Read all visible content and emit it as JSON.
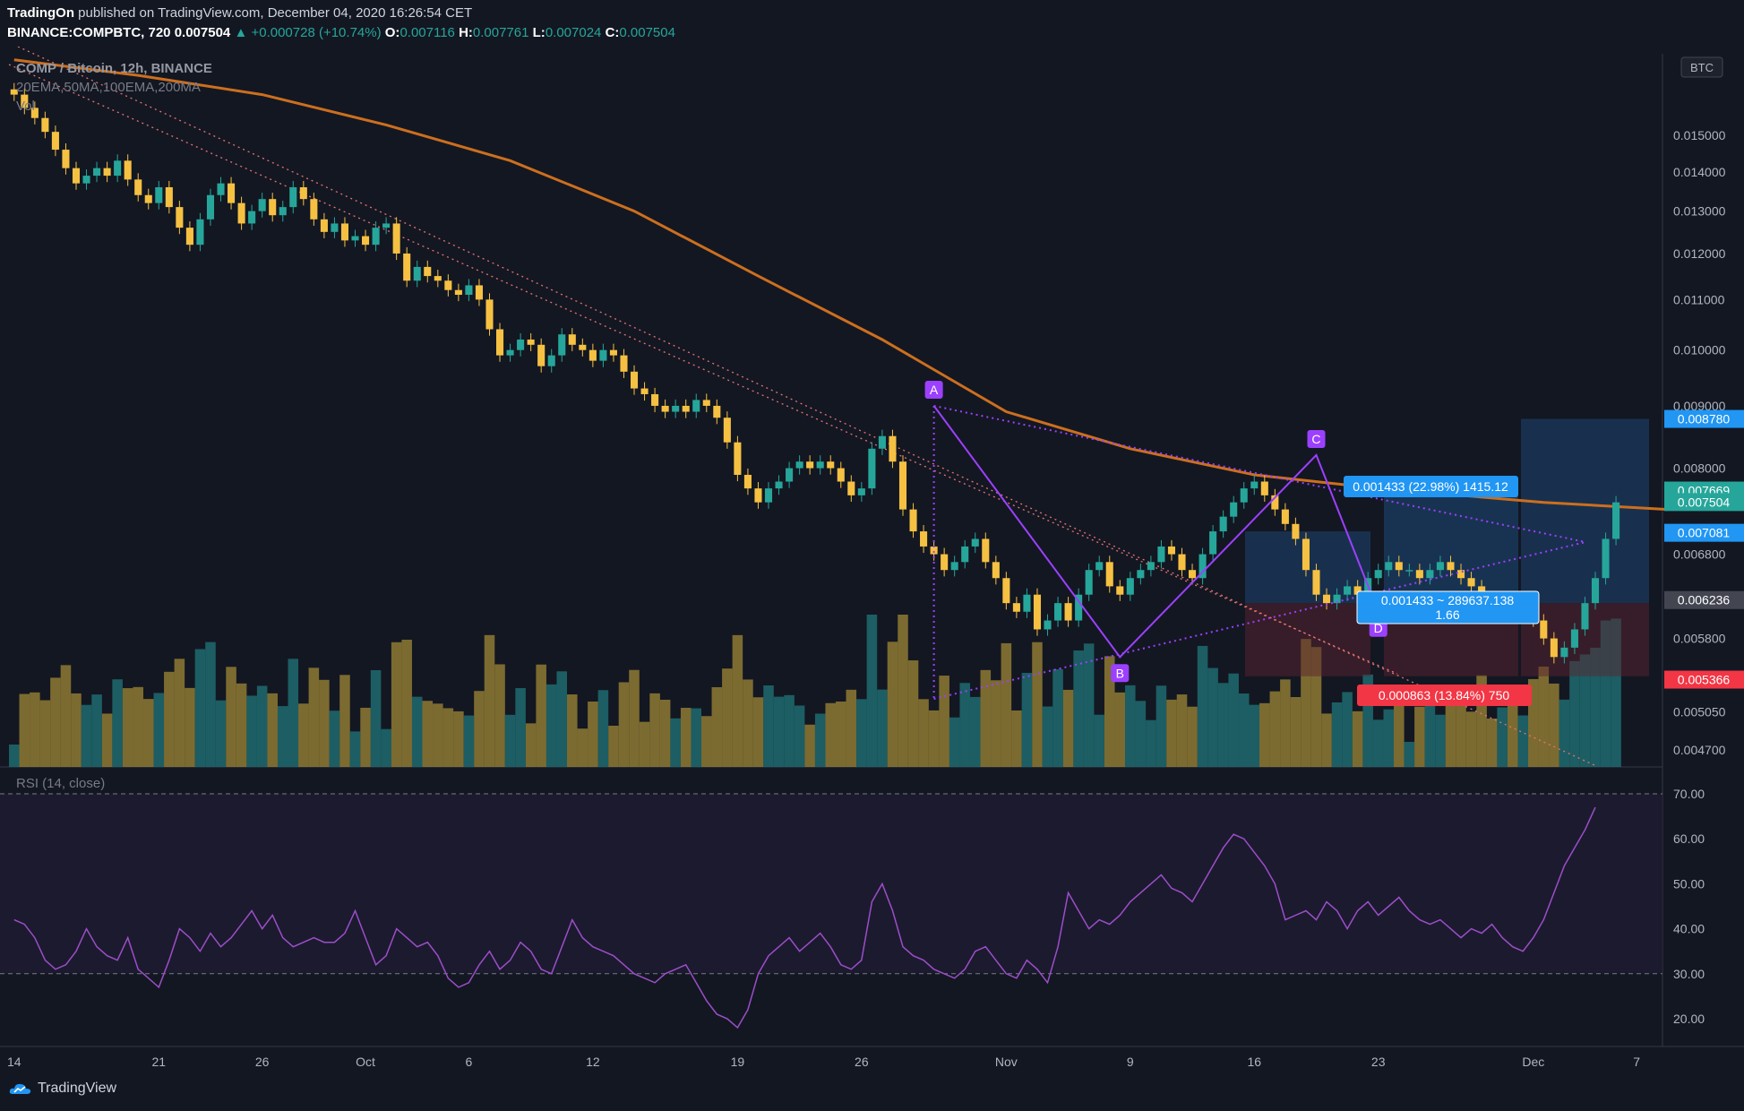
{
  "header": {
    "publisher": "TradingOn",
    "published_text": " published on TradingView.com, December 04, 2020 16:26:54 CET",
    "symbol": "BINANCE:COMPBTC, 720",
    "last": "0.007504",
    "change": "▲ +0.000728 (+10.74%)",
    "o_label": "O:",
    "o_value": "0.007116",
    "h_label": "H:",
    "h_value": "0.007761",
    "l_label": "L:",
    "l_value": "0.007024",
    "c_label": "C:",
    "c_value": "0.007504"
  },
  "legend": {
    "title": "COMP / Bitcoin, 12h, BINANCE",
    "indicators": "20EMA,50MA,100EMA,200MA",
    "volume": "Vol",
    "rsi": "RSI (14, close)"
  },
  "footer": {
    "brand": "TradingView"
  },
  "colors": {
    "background": "#131722",
    "up": "#26a69a",
    "down": "#f6c142",
    "ma200": "#cc6f1f",
    "pattern": "#9c40ff",
    "rsi": "#9c4ec9",
    "trendline": "#e57373"
  },
  "chart_data": {
    "type": "candlestick",
    "currency_badge": "BTC",
    "price_axis": {
      "scale": "log",
      "range": [
        0.00455,
        0.0175
      ],
      "ticks": [
        "0.015000",
        "0.014000",
        "0.013000",
        "0.012000",
        "0.011000",
        "0.010000",
        "0.009000",
        "0.008000",
        "0.006800",
        "0.005800",
        "0.005050",
        "0.004700"
      ],
      "tick_values": [
        0.015,
        0.014,
        0.013,
        0.012,
        0.011,
        0.01,
        0.009,
        0.008,
        0.0068,
        0.0058,
        0.00505,
        0.0047
      ]
    },
    "price_labels": [
      {
        "text": "0.008780",
        "value": 0.00878,
        "color": "#2196f3"
      },
      {
        "text": "0.007669",
        "value": 0.007669,
        "color": "#26a69a"
      },
      {
        "text": "0.007504",
        "value": 0.007504,
        "color": "#26a69a"
      },
      {
        "text": "0.007081",
        "value": 0.007081,
        "color": "#2196f3"
      },
      {
        "text": "0.006236",
        "value": 0.006236,
        "color": "#434651"
      },
      {
        "text": "0.005366",
        "value": 0.005366,
        "color": "#f23645"
      }
    ],
    "time_axis": {
      "labels": [
        "14",
        "21",
        "26",
        "Oct",
        "6",
        "12",
        "19",
        "26",
        "Nov",
        "9",
        "16",
        "23",
        "Dec",
        "7"
      ],
      "label_bar_index": [
        0,
        14,
        24,
        34,
        44,
        56,
        70,
        82,
        96,
        108,
        120,
        132,
        147,
        157
      ],
      "bar_count": 160
    },
    "candles_close": [
      0.0162,
      0.0158,
      0.0155,
      0.0151,
      0.0146,
      0.0141,
      0.0137,
      0.0139,
      0.0141,
      0.0139,
      0.0143,
      0.0138,
      0.0134,
      0.0132,
      0.0136,
      0.0131,
      0.0126,
      0.0122,
      0.0128,
      0.0134,
      0.0137,
      0.0132,
      0.0127,
      0.013,
      0.0133,
      0.0129,
      0.0131,
      0.0136,
      0.0133,
      0.0128,
      0.0125,
      0.0127,
      0.0123,
      0.0124,
      0.0122,
      0.0126,
      0.0127,
      0.012,
      0.0114,
      0.0117,
      0.0115,
      0.0114,
      0.0112,
      0.0111,
      0.0113,
      0.011,
      0.0104,
      0.0099,
      0.01,
      0.0102,
      0.0101,
      0.0097,
      0.0099,
      0.0103,
      0.0101,
      0.01,
      0.0098,
      0.01,
      0.0099,
      0.0096,
      0.0093,
      0.0092,
      0.009,
      0.0089,
      0.009,
      0.0089,
      0.0091,
      0.009,
      0.0088,
      0.0084,
      0.0079,
      0.0077,
      0.0075,
      0.0077,
      0.0078,
      0.008,
      0.0081,
      0.008,
      0.0081,
      0.008,
      0.0078,
      0.0076,
      0.0077,
      0.0083,
      0.0085,
      0.0081,
      0.0074,
      0.0071,
      0.0069,
      0.0068,
      0.0066,
      0.0067,
      0.0069,
      0.007,
      0.0067,
      0.0065,
      0.0062,
      0.0061,
      0.0063,
      0.0059,
      0.006,
      0.0062,
      0.006,
      0.0063,
      0.0066,
      0.0067,
      0.0064,
      0.0063,
      0.0065,
      0.0066,
      0.0067,
      0.0069,
      0.0068,
      0.0066,
      0.0065,
      0.0068,
      0.0071,
      0.0073,
      0.0075,
      0.0077,
      0.0078,
      0.0076,
      0.0074,
      0.0072,
      0.007,
      0.0066,
      0.0063,
      0.0062,
      0.0063,
      0.0064,
      0.0063,
      0.0065,
      0.0066,
      0.0067,
      0.0066,
      0.0066,
      0.0065,
      0.0066,
      0.0067,
      0.0066,
      0.0065,
      0.0064,
      0.0062,
      0.0061,
      0.0062,
      0.0061,
      0.0062,
      0.006,
      0.0058,
      0.0056,
      0.0057,
      0.0059,
      0.0062,
      0.0065,
      0.007,
      0.0075
    ],
    "ma200": [
      [
        0,
        0.0173
      ],
      [
        12,
        0.0168
      ],
      [
        24,
        0.0162
      ],
      [
        36,
        0.0153
      ],
      [
        48,
        0.0143
      ],
      [
        60,
        0.013
      ],
      [
        72,
        0.0115
      ],
      [
        84,
        0.0102
      ],
      [
        96,
        0.0089
      ],
      [
        108,
        0.0083
      ],
      [
        120,
        0.0079
      ],
      [
        132,
        0.0077
      ],
      [
        148,
        0.0075
      ],
      [
        160,
        0.0074
      ]
    ],
    "pattern": {
      "points": [
        {
          "label": "A",
          "bar": 89,
          "price": 0.009
        },
        {
          "label": "B",
          "bar": 107,
          "price": 0.0056
        },
        {
          "label": "C",
          "bar": 126,
          "price": 0.0082
        },
        {
          "label": "D",
          "bar": 132,
          "price": 0.0061
        }
      ]
    },
    "positions": [
      {
        "type": "long",
        "label_profit": "0.001433 (22.98%) 1415.12",
        "label_mid": "0.001433 ~ 289637.138",
        "ratio": "1.66",
        "label_loss": "0.000863 (13.84%) 750"
      }
    ],
    "rsi": {
      "levels": [
        70,
        30
      ],
      "ticks": [
        "70.00",
        "60.00",
        "50.00",
        "40.00",
        "30.00",
        "20.00"
      ],
      "tick_values": [
        70,
        60,
        50,
        40,
        30,
        20
      ],
      "values": [
        42,
        41,
        38,
        33,
        31,
        32,
        35,
        40,
        36,
        34,
        33,
        38,
        31,
        29,
        27,
        33,
        40,
        38,
        35,
        39,
        36,
        38,
        41,
        44,
        40,
        43,
        38,
        36,
        37,
        38,
        37,
        37,
        39,
        44,
        38,
        32,
        34,
        40,
        38,
        36,
        37,
        34,
        29,
        27,
        28,
        32,
        35,
        31,
        33,
        37,
        35,
        31,
        30,
        36,
        42,
        38,
        36,
        35,
        34,
        32,
        30,
        29,
        28,
        30,
        31,
        32,
        28,
        24,
        21,
        20,
        18,
        22,
        30,
        34,
        36,
        38,
        35,
        37,
        39,
        36,
        32,
        31,
        33,
        46,
        50,
        44,
        36,
        34,
        33,
        31,
        30,
        29,
        31,
        35,
        36,
        33,
        30,
        29,
        33,
        31,
        28,
        36,
        48,
        44,
        40,
        42,
        41,
        43,
        46,
        48,
        50,
        52,
        49,
        48,
        46,
        50,
        54,
        58,
        61,
        60,
        57,
        54,
        50,
        42,
        43,
        44,
        42,
        46,
        44,
        40,
        44,
        46,
        43,
        45,
        47,
        44,
        42,
        41,
        42,
        40,
        38,
        40,
        39,
        41,
        38,
        36,
        35,
        38,
        42,
        48,
        54,
        58,
        62,
        67
      ]
    }
  }
}
